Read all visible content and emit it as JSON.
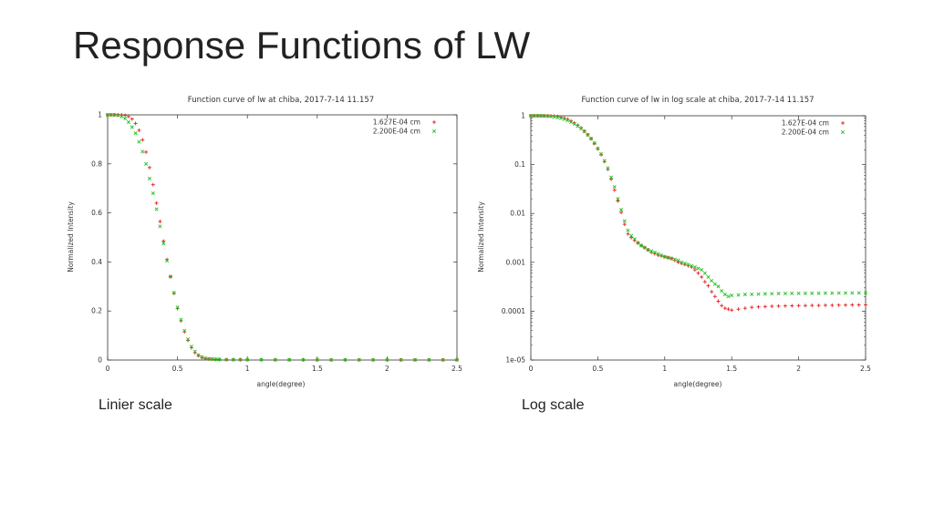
{
  "slide": {
    "title": "Response Functions of LW"
  },
  "captions": {
    "linear": "Linier scale",
    "log": "Log scale"
  },
  "colors": {
    "series1": "#e02020",
    "series2": "#20c020",
    "axis": "#333333"
  },
  "chart_data": [
    {
      "id": "linear",
      "type": "scatter",
      "title": "Function curve of lw at chiba, 2017-7-14 11.157",
      "xlabel": "angle(degree)",
      "ylabel": "Normalized Intensity",
      "xlim": [
        0,
        2.5
      ],
      "ylim": [
        0,
        1
      ],
      "yscale": "linear",
      "xticks": [
        0,
        0.5,
        1,
        1.5,
        2,
        2.5
      ],
      "xtick_labels": [
        "0",
        "0.5",
        "1",
        "1.5",
        "2",
        "2.5"
      ],
      "yticks": [
        0,
        0.2,
        0.4,
        0.6,
        0.8,
        1
      ],
      "ytick_labels": [
        "0",
        "0.2",
        "0.4",
        "0.6",
        "0.8",
        "1"
      ],
      "legend_position": "top-right",
      "grid": false,
      "series": [
        {
          "name": "1.627E-04 cm",
          "marker": "+",
          "x": [
            0,
            0.025,
            0.05,
            0.075,
            0.1,
            0.125,
            0.15,
            0.175,
            0.2,
            0.225,
            0.25,
            0.275,
            0.3,
            0.325,
            0.35,
            0.375,
            0.4,
            0.425,
            0.45,
            0.475,
            0.5,
            0.525,
            0.55,
            0.575,
            0.6,
            0.625,
            0.65,
            0.675,
            0.7,
            0.725,
            0.75,
            0.775,
            0.8,
            0.85,
            0.9,
            0.95,
            1.0,
            1.1,
            1.2,
            1.3,
            1.4,
            1.5,
            1.6,
            1.7,
            1.8,
            1.9,
            2.0,
            2.1,
            2.2,
            2.3,
            2.4,
            2.5
          ],
          "y": [
            1.0,
            1.0,
            1.0,
            1.0,
            1.0,
            0.998,
            0.993,
            0.983,
            0.965,
            0.937,
            0.898,
            0.848,
            0.785,
            0.715,
            0.64,
            0.565,
            0.485,
            0.41,
            0.34,
            0.272,
            0.21,
            0.16,
            0.115,
            0.08,
            0.05,
            0.03,
            0.018,
            0.01,
            0.006,
            0.004,
            0.003,
            0.0025,
            0.002,
            0.0015,
            0.0013,
            0.0012,
            0.0011,
            0.001,
            0.0009,
            0.0008,
            0.0007,
            0.0005,
            0.0005,
            0.0005,
            0.0005,
            0.0005,
            0.0005,
            0.0005,
            0.0005,
            0.0005,
            0.0005,
            0.0005
          ]
        },
        {
          "name": "2.200E-04 cm",
          "marker": "x",
          "x": [
            0,
            0.025,
            0.05,
            0.075,
            0.1,
            0.125,
            0.15,
            0.175,
            0.2,
            0.225,
            0.25,
            0.275,
            0.3,
            0.325,
            0.35,
            0.375,
            0.4,
            0.425,
            0.45,
            0.475,
            0.5,
            0.525,
            0.55,
            0.575,
            0.6,
            0.625,
            0.65,
            0.675,
            0.7,
            0.725,
            0.75,
            0.775,
            0.8,
            0.85,
            0.9,
            0.95,
            1.0,
            1.1,
            1.2,
            1.3,
            1.4,
            1.5,
            1.6,
            1.7,
            1.8,
            1.9,
            2.0,
            2.1,
            2.2,
            2.3,
            2.4,
            2.5
          ],
          "y": [
            1.0,
            1.0,
            1.0,
            0.998,
            0.993,
            0.985,
            0.97,
            0.95,
            0.925,
            0.89,
            0.85,
            0.8,
            0.74,
            0.68,
            0.615,
            0.545,
            0.475,
            0.405,
            0.34,
            0.275,
            0.215,
            0.165,
            0.12,
            0.085,
            0.055,
            0.035,
            0.02,
            0.012,
            0.007,
            0.005,
            0.004,
            0.003,
            0.0025,
            0.002,
            0.0018,
            0.0016,
            0.0015,
            0.0013,
            0.0012,
            0.0011,
            0.001,
            0.001,
            0.001,
            0.001,
            0.001,
            0.001,
            0.001,
            0.001,
            0.001,
            0.001,
            0.001,
            0.001
          ]
        }
      ]
    },
    {
      "id": "log",
      "type": "scatter",
      "title": "Function curve of lw in log scale at chiba, 2017-7-14 11.157",
      "xlabel": "angle(degree)",
      "ylabel": "Normalized Intensity",
      "xlim": [
        0,
        2.5
      ],
      "ylim": [
        1e-05,
        1
      ],
      "yscale": "log",
      "xticks": [
        0,
        0.5,
        1,
        1.5,
        2,
        2.5
      ],
      "xtick_labels": [
        "0",
        "0.5",
        "1",
        "1.5",
        "2",
        "2.5"
      ],
      "yticks": [
        1e-05,
        0.0001,
        0.001,
        0.01,
        0.1,
        1
      ],
      "ytick_labels": [
        "1e-05",
        "0.0001",
        "0.001",
        "0.01",
        "0.1",
        "1"
      ],
      "legend_position": "top-right",
      "grid": false,
      "series": [
        {
          "name": "1.627E-04 cm",
          "marker": "+",
          "x": [
            0,
            0.025,
            0.05,
            0.075,
            0.1,
            0.125,
            0.15,
            0.175,
            0.2,
            0.225,
            0.25,
            0.275,
            0.3,
            0.325,
            0.35,
            0.375,
            0.4,
            0.425,
            0.45,
            0.475,
            0.5,
            0.525,
            0.55,
            0.575,
            0.6,
            0.625,
            0.65,
            0.675,
            0.7,
            0.725,
            0.75,
            0.775,
            0.8,
            0.825,
            0.85,
            0.875,
            0.9,
            0.925,
            0.95,
            0.975,
            1.0,
            1.025,
            1.05,
            1.075,
            1.1,
            1.125,
            1.15,
            1.175,
            1.2,
            1.225,
            1.25,
            1.275,
            1.3,
            1.325,
            1.35,
            1.375,
            1.4,
            1.425,
            1.45,
            1.475,
            1.5,
            1.55,
            1.6,
            1.65,
            1.7,
            1.75,
            1.8,
            1.85,
            1.9,
            1.95,
            2.0,
            2.05,
            2.1,
            2.15,
            2.2,
            2.25,
            2.3,
            2.35,
            2.4,
            2.45,
            2.5
          ],
          "y": [
            1.0,
            1.0,
            1.0,
            1.0,
            1.0,
            0.998,
            0.993,
            0.983,
            0.965,
            0.937,
            0.898,
            0.848,
            0.785,
            0.715,
            0.64,
            0.565,
            0.485,
            0.41,
            0.34,
            0.272,
            0.21,
            0.16,
            0.115,
            0.08,
            0.05,
            0.03,
            0.018,
            0.0105,
            0.006,
            0.0038,
            0.0032,
            0.0028,
            0.0025,
            0.0022,
            0.002,
            0.0018,
            0.0016,
            0.0015,
            0.0014,
            0.00135,
            0.0013,
            0.00125,
            0.0012,
            0.0011,
            0.001,
            0.00095,
            0.0009,
            0.00085,
            0.0008,
            0.0007,
            0.0006,
            0.0005,
            0.0004,
            0.00033,
            0.00025,
            0.0002,
            0.00016,
            0.00013,
            0.000115,
            0.00011,
            0.000105,
            0.00011,
            0.000115,
            0.00012,
            0.000122,
            0.000124,
            0.000126,
            0.000127,
            0.000128,
            0.000129,
            0.00013,
            0.00013,
            0.000131,
            0.000131,
            0.000132,
            0.000132,
            0.000133,
            0.000133,
            0.000134,
            0.000134,
            0.000135
          ]
        },
        {
          "name": "2.200E-04 cm",
          "marker": "x",
          "x": [
            0,
            0.025,
            0.05,
            0.075,
            0.1,
            0.125,
            0.15,
            0.175,
            0.2,
            0.225,
            0.25,
            0.275,
            0.3,
            0.325,
            0.35,
            0.375,
            0.4,
            0.425,
            0.45,
            0.475,
            0.5,
            0.525,
            0.55,
            0.575,
            0.6,
            0.625,
            0.65,
            0.675,
            0.7,
            0.725,
            0.75,
            0.775,
            0.8,
            0.825,
            0.85,
            0.875,
            0.9,
            0.925,
            0.95,
            0.975,
            1.0,
            1.025,
            1.05,
            1.075,
            1.1,
            1.125,
            1.15,
            1.175,
            1.2,
            1.225,
            1.25,
            1.275,
            1.3,
            1.325,
            1.35,
            1.375,
            1.4,
            1.425,
            1.45,
            1.475,
            1.5,
            1.55,
            1.6,
            1.65,
            1.7,
            1.75,
            1.8,
            1.85,
            1.9,
            1.95,
            2.0,
            2.05,
            2.1,
            2.15,
            2.2,
            2.25,
            2.3,
            2.35,
            2.4,
            2.45,
            2.5
          ],
          "y": [
            1.0,
            1.0,
            1.0,
            0.998,
            0.993,
            0.985,
            0.97,
            0.95,
            0.925,
            0.89,
            0.85,
            0.8,
            0.74,
            0.68,
            0.615,
            0.545,
            0.475,
            0.405,
            0.34,
            0.275,
            0.215,
            0.165,
            0.12,
            0.085,
            0.055,
            0.035,
            0.02,
            0.012,
            0.007,
            0.0045,
            0.0035,
            0.003,
            0.0025,
            0.0022,
            0.002,
            0.0018,
            0.0017,
            0.0016,
            0.0015,
            0.0014,
            0.0013,
            0.00125,
            0.0012,
            0.00115,
            0.0011,
            0.001,
            0.00095,
            0.0009,
            0.00085,
            0.0008,
            0.00075,
            0.0007,
            0.0006,
            0.0005,
            0.00042,
            0.00036,
            0.00032,
            0.00026,
            0.00022,
            0.0002,
            0.00021,
            0.000215,
            0.00022,
            0.000222,
            0.000224,
            0.000226,
            0.000228,
            0.00023,
            0.00023,
            0.000231,
            0.000232,
            0.000232,
            0.000233,
            0.000233,
            0.000234,
            0.000234,
            0.000235,
            0.000235,
            0.000235,
            0.000236,
            0.000236
          ]
        }
      ]
    }
  ]
}
